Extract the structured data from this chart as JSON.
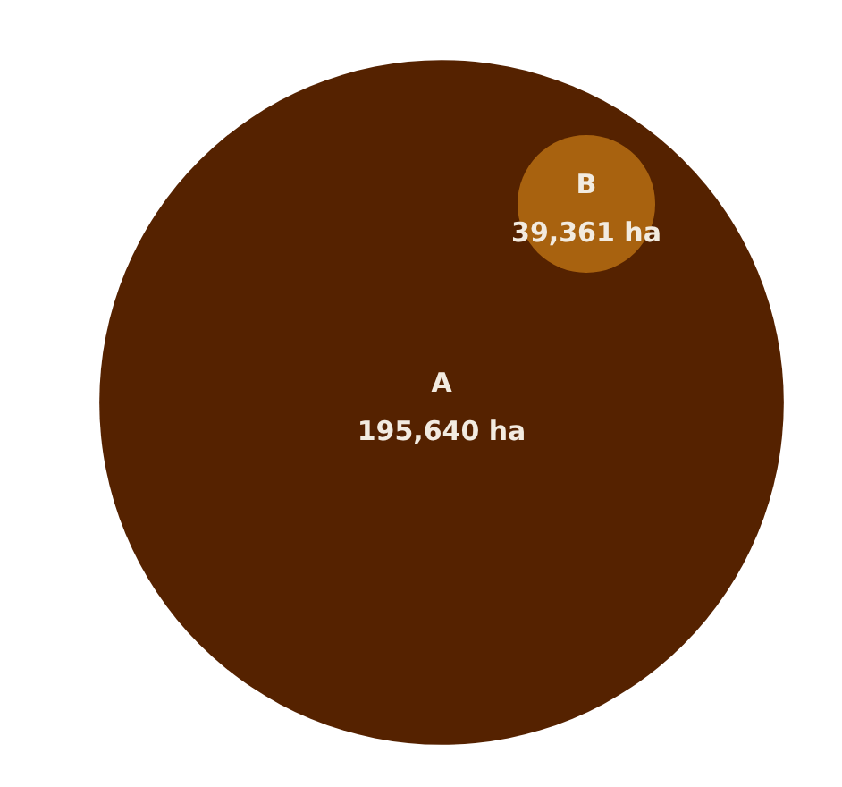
{
  "chart_data": {
    "type": "other",
    "categories": [
      "A",
      "B"
    ],
    "values": [
      195640,
      39361
    ],
    "value_labels": [
      "195,640 ha",
      "39,361 ha"
    ],
    "colors": [
      "#552200",
      "#a8620f"
    ]
  }
}
